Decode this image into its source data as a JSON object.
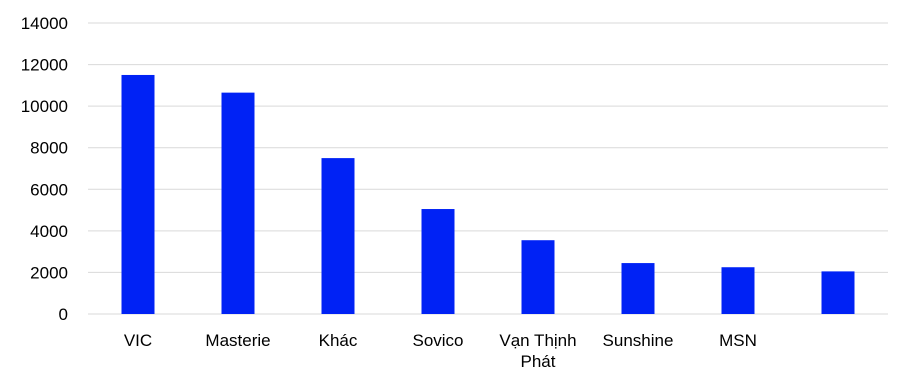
{
  "chart_data": {
    "type": "bar",
    "title": "",
    "xlabel": "",
    "ylabel": "",
    "categories": [
      "VIC",
      "Masterie",
      "Khác",
      "Sovico",
      "Vạn Thịnh Phát",
      "Sunshine",
      "MSN",
      ""
    ],
    "values": [
      11500,
      10650,
      7500,
      5050,
      3550,
      2450,
      2250,
      2050
    ],
    "ylim": [
      0,
      14000
    ],
    "yticks": [
      0,
      2000,
      4000,
      6000,
      8000,
      10000,
      12000,
      14000
    ],
    "ytick_labels": [
      "0",
      "2000",
      "4000",
      "6000",
      "8000",
      "10000",
      "12000",
      "14000"
    ],
    "grid": true,
    "legend": "none",
    "colors": {
      "bar": "#0022f5",
      "grid": "#d9d9d9",
      "text": "#000000"
    }
  }
}
